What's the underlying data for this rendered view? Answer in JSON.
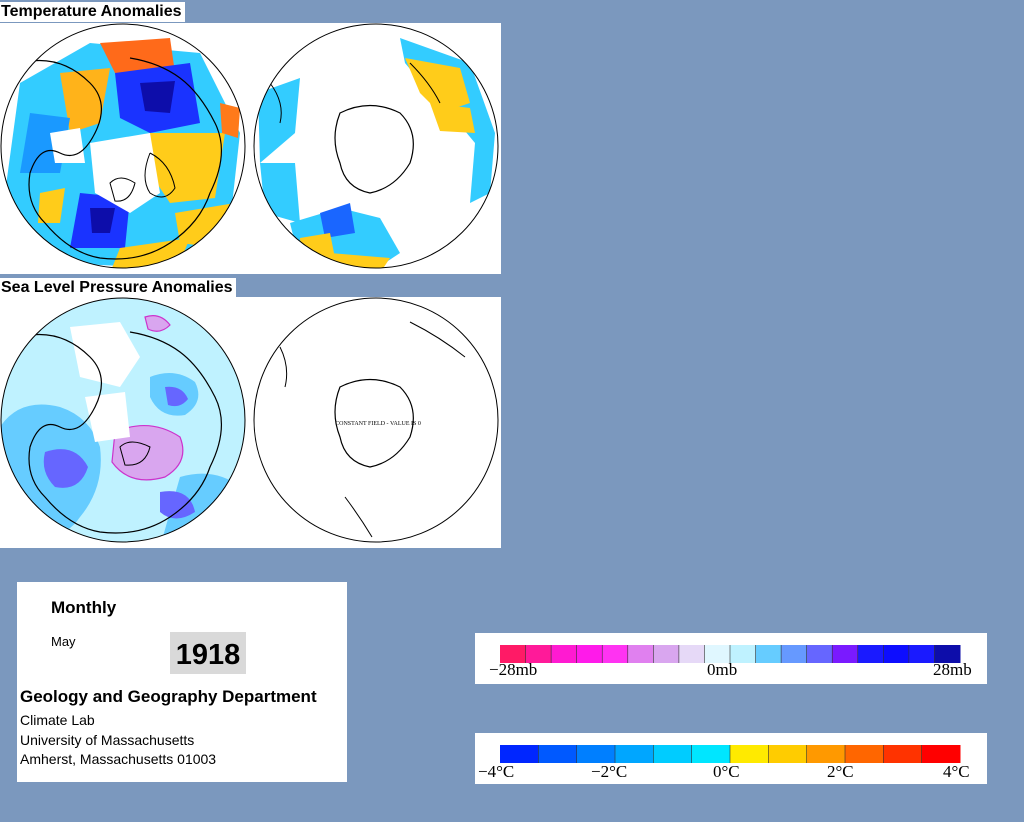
{
  "temperature": {
    "title": "Temperature Anomalies"
  },
  "pressure": {
    "title": "Sea Level Pressure Anomalies",
    "constant_field_note": "CONSTANT FIELD - VALUE IS 0"
  },
  "info": {
    "frequency": "Monthly",
    "month": "May",
    "year": "1918",
    "department": "Geology and Geography Department",
    "lab": "Climate Lab",
    "university": "University of Massachusetts",
    "address": "Amherst, Massachusetts 01003"
  },
  "pressure_legend": {
    "labels": [
      "−28mb",
      "0mb",
      "28mb"
    ],
    "colors": [
      "#ff1a66",
      "#ff1a99",
      "#ff1ad1",
      "#ff1aea",
      "#ff33f2",
      "#e080ef",
      "#d9a6ef",
      "#e6d9f7",
      "#e0f7ff",
      "#bff2ff",
      "#66ccff",
      "#6699ff",
      "#6666ff",
      "#7a1aff",
      "#1a1aff",
      "#0d0dff",
      "#1a1aff",
      "#0d0daa"
    ]
  },
  "temperature_legend": {
    "labels": [
      "−4°C",
      "−2°C",
      "0°C",
      "2°C",
      "4°C"
    ],
    "colors": [
      "#0026ff",
      "#0059ff",
      "#007fff",
      "#00a6ff",
      "#00ccff",
      "#00e6ff",
      "#ffea00",
      "#ffcc00",
      "#ff9900",
      "#ff6600",
      "#ff3300",
      "#ff0000"
    ]
  }
}
